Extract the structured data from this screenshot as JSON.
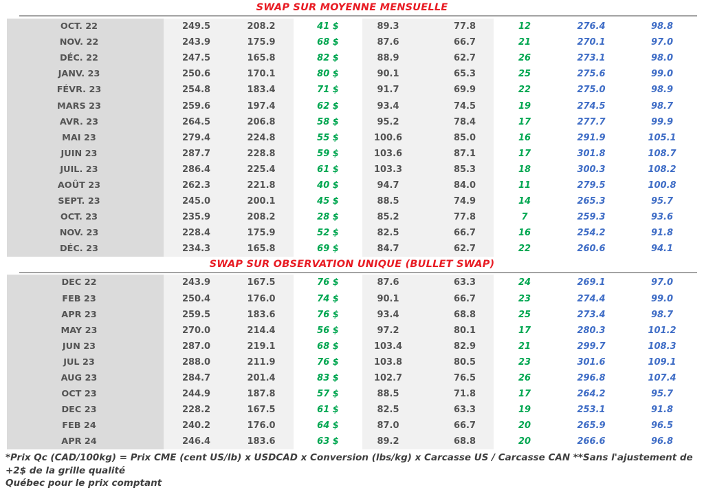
{
  "colors": {
    "red": "#e81c24",
    "green": "#00a650",
    "blue": "#3f6dc6"
  },
  "footnote": {
    "line1": "*Prix Qc (CAD/100kg) = Prix CME (cent US/lb) x USDCAD x Conversion (lbs/kg) x Carcasse US / Carcasse CAN **Sans l'ajustement de +2$ de la grille qualité",
    "line2": "Québec pour le prix comptant"
  },
  "sections": [
    {
      "title": "SWAP SUR MOYENNE MENSUELLE",
      "rows": [
        [
          "OCT. 22",
          "249.5",
          "208.2",
          "41 $",
          "89.3",
          "77.8",
          "12",
          "276.4",
          "98.8"
        ],
        [
          "NOV. 22",
          "243.9",
          "175.9",
          "68 $",
          "87.6",
          "66.7",
          "21",
          "270.1",
          "97.0"
        ],
        [
          "DÉC. 22",
          "247.5",
          "165.8",
          "82 $",
          "88.9",
          "62.7",
          "26",
          "273.1",
          "98.0"
        ],
        [
          "JANV. 23",
          "250.6",
          "170.1",
          "80 $",
          "90.1",
          "65.3",
          "25",
          "275.6",
          "99.0"
        ],
        [
          "FÉVR. 23",
          "254.8",
          "183.4",
          "71 $",
          "91.7",
          "69.9",
          "22",
          "275.0",
          "98.9"
        ],
        [
          "MARS 23",
          "259.6",
          "197.4",
          "62 $",
          "93.4",
          "74.5",
          "19",
          "274.5",
          "98.7"
        ],
        [
          "AVR. 23",
          "264.5",
          "206.8",
          "58 $",
          "95.2",
          "78.4",
          "17",
          "277.7",
          "99.9"
        ],
        [
          "MAI 23",
          "279.4",
          "224.8",
          "55 $",
          "100.6",
          "85.0",
          "16",
          "291.9",
          "105.1"
        ],
        [
          "JUIN 23",
          "287.7",
          "228.8",
          "59 $",
          "103.6",
          "87.1",
          "17",
          "301.8",
          "108.7"
        ],
        [
          "JUIL. 23",
          "286.4",
          "225.4",
          "61 $",
          "103.3",
          "85.3",
          "18",
          "300.3",
          "108.2"
        ],
        [
          "AOÛT 23",
          "262.3",
          "221.8",
          "40 $",
          "94.7",
          "84.0",
          "11",
          "279.5",
          "100.8"
        ],
        [
          "SEPT. 23",
          "245.0",
          "200.1",
          "45 $",
          "88.5",
          "74.9",
          "14",
          "265.3",
          "95.7"
        ],
        [
          "OCT. 23",
          "235.9",
          "208.2",
          "28 $",
          "85.2",
          "77.8",
          "7",
          "259.3",
          "93.6"
        ],
        [
          "NOV. 23",
          "228.4",
          "175.9",
          "52 $",
          "82.5",
          "66.7",
          "16",
          "254.2",
          "91.8"
        ],
        [
          "DÉC. 23",
          "234.3",
          "165.8",
          "69 $",
          "84.7",
          "62.7",
          "22",
          "260.6",
          "94.1"
        ]
      ]
    },
    {
      "title": "SWAP SUR OBSERVATION UNIQUE (BULLET SWAP)",
      "rows": [
        [
          "DEC 22",
          "243.9",
          "167.5",
          "76 $",
          "87.6",
          "63.3",
          "24",
          "269.1",
          "97.0"
        ],
        [
          "FEB 23",
          "250.4",
          "176.0",
          "74 $",
          "90.1",
          "66.7",
          "23",
          "274.4",
          "99.0"
        ],
        [
          "APR 23",
          "259.5",
          "183.6",
          "76 $",
          "93.4",
          "68.8",
          "25",
          "273.4",
          "98.7"
        ],
        [
          "MAY 23",
          "270.0",
          "214.4",
          "56 $",
          "97.2",
          "80.1",
          "17",
          "280.3",
          "101.2"
        ],
        [
          "JUN 23",
          "287.0",
          "219.1",
          "68 $",
          "103.4",
          "82.9",
          "21",
          "299.7",
          "108.3"
        ],
        [
          "JUL 23",
          "288.0",
          "211.9",
          "76 $",
          "103.8",
          "80.5",
          "23",
          "301.6",
          "109.1"
        ],
        [
          "AUG 23",
          "284.7",
          "201.4",
          "83 $",
          "102.7",
          "76.5",
          "26",
          "296.8",
          "107.4"
        ],
        [
          "OCT 23",
          "244.9",
          "187.8",
          "57 $",
          "88.5",
          "71.8",
          "17",
          "264.2",
          "95.7"
        ],
        [
          "DEC 23",
          "228.2",
          "167.5",
          "61 $",
          "82.5",
          "63.3",
          "19",
          "253.1",
          "91.8"
        ],
        [
          "FEB 24",
          "240.2",
          "176.0",
          "64 $",
          "87.0",
          "66.7",
          "20",
          "265.9",
          "96.5"
        ],
        [
          "APR 24",
          "246.4",
          "183.6",
          "63 $",
          "89.2",
          "68.8",
          "20",
          "266.6",
          "96.8"
        ]
      ]
    }
  ]
}
